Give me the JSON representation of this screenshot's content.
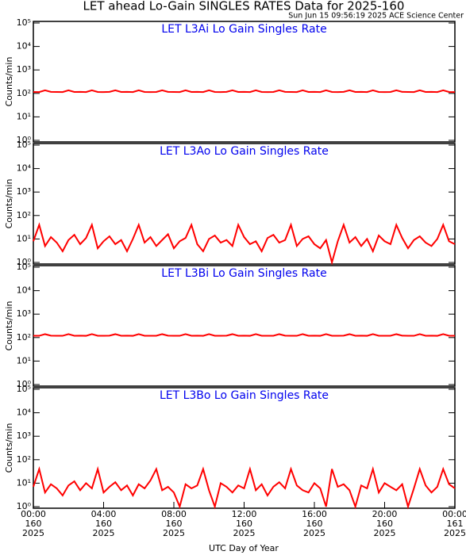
{
  "title": "LET ahead Lo-Gain SINGLES RATES Data for 2025-160",
  "subtitle": "Sun Jun 15 09:56:19 2025 ACE Science Center",
  "chart_data": [
    {
      "type": "line",
      "title": "LET L3Ai Lo Gain Singles Rate",
      "ylabel": "Counts/min",
      "color": "#ff0000",
      "log_scale": true,
      "xlim": [
        0,
        1440
      ],
      "ylim": [
        1,
        100000
      ],
      "yticks": [
        {
          "value": 1,
          "label": "10⁰"
        },
        {
          "value": 10,
          "label": "10¹"
        },
        {
          "value": 100,
          "label": "10²"
        },
        {
          "value": 1000,
          "label": "10³"
        },
        {
          "value": 10000,
          "label": "10⁴"
        },
        {
          "value": 100000,
          "label": "10⁵"
        }
      ],
      "x": [
        0,
        20,
        40,
        60,
        80,
        100,
        120,
        140,
        160,
        180,
        200,
        220,
        240,
        260,
        280,
        300,
        320,
        340,
        360,
        380,
        400,
        420,
        440,
        460,
        480,
        500,
        520,
        540,
        560,
        580,
        600,
        620,
        640,
        660,
        680,
        700,
        720,
        740,
        760,
        780,
        800,
        820,
        840,
        860,
        880,
        900,
        920,
        940,
        960,
        980,
        1000,
        1020,
        1040,
        1060,
        1080,
        1100,
        1120,
        1140,
        1160,
        1180,
        1200,
        1220,
        1240,
        1260,
        1280,
        1300,
        1320,
        1340,
        1360,
        1380,
        1400,
        1420,
        1440
      ],
      "values": [
        115,
        114,
        135,
        116,
        115,
        114,
        135,
        115,
        116,
        114,
        135,
        115,
        114,
        116,
        135,
        115,
        116,
        114,
        135,
        115,
        114,
        115,
        135,
        116,
        115,
        114,
        135,
        115,
        116,
        114,
        135,
        115,
        114,
        116,
        135,
        115,
        116,
        114,
        135,
        115,
        114,
        115,
        135,
        116,
        115,
        114,
        135,
        115,
        116,
        114,
        135,
        115,
        114,
        116,
        135,
        115,
        116,
        114,
        135,
        115,
        114,
        115,
        135,
        116,
        115,
        114,
        135,
        115,
        116,
        114,
        135,
        115,
        114
      ]
    },
    {
      "type": "line",
      "title": "LET L3Ao Lo Gain Singles Rate",
      "ylabel": "Counts/min",
      "color": "#ff0000",
      "log_scale": true,
      "xlim": [
        0,
        1440
      ],
      "ylim": [
        1,
        100000
      ],
      "yticks": [
        {
          "value": 1,
          "label": "10⁰"
        },
        {
          "value": 10,
          "label": "10¹"
        },
        {
          "value": 100,
          "label": "10²"
        },
        {
          "value": 1000,
          "label": "10³"
        },
        {
          "value": 10000,
          "label": "10⁴"
        },
        {
          "value": 100000,
          "label": "10⁵"
        }
      ],
      "x": [
        0,
        20,
        40,
        60,
        80,
        100,
        120,
        140,
        160,
        180,
        200,
        220,
        240,
        260,
        280,
        300,
        320,
        340,
        360,
        380,
        400,
        420,
        440,
        460,
        480,
        500,
        520,
        540,
        560,
        580,
        600,
        620,
        640,
        660,
        680,
        700,
        720,
        740,
        760,
        780,
        800,
        820,
        840,
        860,
        880,
        900,
        920,
        940,
        960,
        980,
        1000,
        1020,
        1040,
        1060,
        1080,
        1100,
        1120,
        1140,
        1160,
        1180,
        1200,
        1220,
        1240,
        1260,
        1280,
        1300,
        1320,
        1340,
        1360,
        1380,
        1400,
        1420,
        1440
      ],
      "values": [
        8,
        40,
        5,
        12,
        7,
        3,
        9,
        15,
        6,
        11,
        40,
        4,
        8,
        13,
        6,
        9,
        3,
        10,
        40,
        7,
        12,
        5,
        9,
        16,
        4,
        8,
        11,
        40,
        6,
        3,
        10,
        14,
        7,
        9,
        5,
        40,
        12,
        6,
        8,
        3,
        11,
        15,
        7,
        9,
        40,
        5,
        10,
        13,
        6,
        4,
        9,
        1,
        8,
        40,
        7,
        12,
        5,
        10,
        3,
        14,
        8,
        6,
        40,
        11,
        4,
        9,
        13,
        7,
        5,
        10,
        40,
        8,
        6
      ]
    },
    {
      "type": "line",
      "title": "LET L3Bi Lo Gain Singles Rate",
      "ylabel": "Counts/min",
      "color": "#ff0000",
      "log_scale": true,
      "xlim": [
        0,
        1440
      ],
      "ylim": [
        1,
        100000
      ],
      "yticks": [
        {
          "value": 1,
          "label": "10⁰"
        },
        {
          "value": 10,
          "label": "10¹"
        },
        {
          "value": 100,
          "label": "10²"
        },
        {
          "value": 1000,
          "label": "10³"
        },
        {
          "value": 10000,
          "label": "10⁴"
        },
        {
          "value": 100000,
          "label": "10⁵"
        }
      ],
      "x": [
        0,
        20,
        40,
        60,
        80,
        100,
        120,
        140,
        160,
        180,
        200,
        220,
        240,
        260,
        280,
        300,
        320,
        340,
        360,
        380,
        400,
        420,
        440,
        460,
        480,
        500,
        520,
        540,
        560,
        580,
        600,
        620,
        640,
        660,
        680,
        700,
        720,
        740,
        760,
        780,
        800,
        820,
        840,
        860,
        880,
        900,
        920,
        940,
        960,
        980,
        1000,
        1020,
        1040,
        1060,
        1080,
        1100,
        1120,
        1140,
        1160,
        1180,
        1200,
        1220,
        1240,
        1260,
        1280,
        1300,
        1320,
        1340,
        1360,
        1380,
        1400,
        1420,
        1440
      ],
      "values": [
        120,
        119,
        140,
        121,
        120,
        119,
        140,
        120,
        121,
        119,
        140,
        120,
        119,
        121,
        140,
        120,
        121,
        119,
        140,
        120,
        119,
        120,
        140,
        121,
        120,
        119,
        140,
        120,
        121,
        119,
        140,
        120,
        119,
        121,
        140,
        120,
        121,
        119,
        140,
        120,
        119,
        120,
        140,
        121,
        120,
        119,
        140,
        120,
        121,
        119,
        140,
        120,
        119,
        121,
        140,
        120,
        121,
        119,
        140,
        120,
        119,
        120,
        140,
        121,
        120,
        119,
        140,
        120,
        121,
        119,
        140,
        120,
        119
      ]
    },
    {
      "type": "line",
      "title": "LET L3Bo Lo Gain Singles Rate",
      "ylabel": "Counts/min",
      "color": "#ff0000",
      "log_scale": true,
      "xlim": [
        0,
        1440
      ],
      "ylim": [
        1,
        100000
      ],
      "yticks": [
        {
          "value": 1,
          "label": "10⁰"
        },
        {
          "value": 10,
          "label": "10¹"
        },
        {
          "value": 100,
          "label": "10²"
        },
        {
          "value": 1000,
          "label": "10³"
        },
        {
          "value": 10000,
          "label": "10⁴"
        },
        {
          "value": 100000,
          "label": "10⁵"
        }
      ],
      "xlabel": "UTC Day of Year",
      "xticks": [
        {
          "value": 0,
          "label": "00:00\n160\n2025"
        },
        {
          "value": 240,
          "label": "04:00\n160\n2025"
        },
        {
          "value": 480,
          "label": "08:00\n160\n2025"
        },
        {
          "value": 720,
          "label": "12:00\n160\n2025"
        },
        {
          "value": 960,
          "label": "16:00\n160\n2025"
        },
        {
          "value": 1200,
          "label": "20:00\n160\n2025"
        },
        {
          "value": 1440,
          "label": "00:00\n161\n2025"
        }
      ],
      "x": [
        0,
        20,
        40,
        60,
        80,
        100,
        120,
        140,
        160,
        180,
        200,
        220,
        240,
        260,
        280,
        300,
        320,
        340,
        360,
        380,
        400,
        420,
        440,
        460,
        480,
        500,
        520,
        540,
        560,
        580,
        600,
        620,
        640,
        660,
        680,
        700,
        720,
        740,
        760,
        780,
        800,
        820,
        840,
        860,
        880,
        900,
        920,
        940,
        960,
        980,
        1000,
        1020,
        1040,
        1060,
        1080,
        1100,
        1120,
        1140,
        1160,
        1180,
        1200,
        1220,
        1240,
        1260,
        1280,
        1300,
        1320,
        1340,
        1360,
        1380,
        1400,
        1420,
        1440
      ],
      "values": [
        7,
        40,
        4,
        9,
        6,
        3,
        8,
        12,
        5,
        10,
        6,
        40,
        4,
        7,
        11,
        5,
        8,
        3,
        9,
        6,
        13,
        40,
        5,
        7,
        4,
        1,
        9,
        6,
        8,
        40,
        5,
        1,
        10,
        7,
        4,
        8,
        6,
        40,
        5,
        9,
        3,
        7,
        11,
        6,
        40,
        8,
        5,
        4,
        10,
        6,
        1,
        40,
        7,
        9,
        5,
        1,
        8,
        6,
        40,
        4,
        10,
        7,
        5,
        9,
        1,
        6,
        40,
        8,
        4,
        7,
        40,
        9,
        6
      ]
    }
  ]
}
